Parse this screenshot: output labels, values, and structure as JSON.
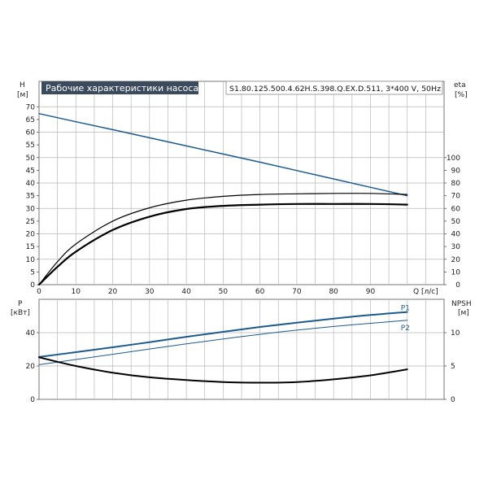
{
  "header": {
    "title": "Рабочие характеристики насоса",
    "model": "S1.80.125.500.4.62H.S.398.Q.EX.D.511, 3*400 V, 50Hz"
  },
  "colors": {
    "blue": "#1c5a8e",
    "black": "#000000",
    "grid": "#b8b8b8",
    "title_bg": "#3b4a5c"
  },
  "axes": {
    "h_label": "H",
    "h_unit": "[м]",
    "eta_label": "eta",
    "eta_unit": "[%]",
    "q_label": "Q [л/с]",
    "p_label": "P",
    "p_unit": "[кВт]",
    "npsh_label": "NPSH",
    "npsh_unit": "[м]"
  },
  "chart_data": [
    {
      "type": "line",
      "title": "Рабочие характеристики насоса",
      "xlabel": "Q [л/с]",
      "ylabel": "H [м]",
      "y2label": "eta [%]",
      "xlim": [
        0,
        110
      ],
      "ylim": [
        0,
        80
      ],
      "y2lim": [
        0,
        160
      ],
      "x_ticks": [
        0,
        10,
        20,
        30,
        40,
        50,
        60,
        70,
        80,
        90
      ],
      "y_ticks": [
        0,
        5,
        10,
        15,
        20,
        25,
        30,
        35,
        40,
        45,
        50,
        55,
        60,
        65,
        70
      ],
      "y2_ticks": [
        0,
        10,
        20,
        30,
        40,
        50,
        60,
        70,
        80,
        90,
        100
      ],
      "grid": true,
      "series": [
        {
          "axis": "H",
          "color": "#1c5a8e",
          "x": [
            0,
            10,
            20,
            30,
            40,
            50,
            60,
            70,
            80,
            90,
            100
          ],
          "y": [
            67.3,
            64.1,
            61.0,
            57.8,
            54.6,
            51.4,
            48.2,
            44.9,
            41.6,
            38.3,
            35.0
          ]
        },
        {
          "axis": "eta",
          "color": "#000000",
          "width": 1.2,
          "x": [
            0,
            5,
            10,
            20,
            30,
            40,
            50,
            60,
            70,
            80,
            90,
            100
          ],
          "y": [
            0,
            18,
            32,
            50,
            60.5,
            66.5,
            69.5,
            71,
            71.5,
            71.8,
            71.8,
            71
          ]
        },
        {
          "axis": "eta",
          "color": "#000000",
          "width": 2.2,
          "x": [
            0,
            5,
            10,
            20,
            30,
            40,
            50,
            60,
            70,
            80,
            90,
            100
          ],
          "y": [
            0,
            14,
            26,
            43,
            53.5,
            59.5,
            62,
            63,
            63.5,
            63.5,
            63.5,
            63
          ]
        }
      ]
    },
    {
      "type": "line",
      "xlabel": "Q [л/с]",
      "ylabel": "P [кВт]",
      "y2label": "NPSH [м]",
      "xlim": [
        0,
        110
      ],
      "ylim": [
        0,
        60
      ],
      "y2lim": [
        0,
        15
      ],
      "x_ticks": [
        0,
        10,
        20,
        30,
        40,
        50,
        60,
        70,
        80,
        90
      ],
      "y_ticks": [
        0,
        20,
        40
      ],
      "y2_ticks": [
        0,
        5,
        10
      ],
      "grid": true,
      "series": [
        {
          "name": "P1",
          "axis": "P",
          "color": "#1c5a8e",
          "width": 2,
          "x": [
            0,
            10,
            20,
            30,
            40,
            50,
            60,
            70,
            80,
            90,
            100
          ],
          "y": [
            25.4,
            28.3,
            31.2,
            34.3,
            37.5,
            40.5,
            43.4,
            46.0,
            48.4,
            50.6,
            52.4
          ]
        },
        {
          "name": "P2",
          "axis": "P",
          "color": "#1c5a8e",
          "width": 1,
          "x": [
            0,
            10,
            20,
            30,
            40,
            50,
            60,
            70,
            80,
            90,
            100
          ],
          "y": [
            20.8,
            23.9,
            27.0,
            30.2,
            33.3,
            36.2,
            39.0,
            41.5,
            43.7,
            45.6,
            47.4
          ]
        },
        {
          "name": "NPSH",
          "axis": "NPSH",
          "color": "#000000",
          "width": 2,
          "x": [
            0,
            10,
            20,
            30,
            40,
            50,
            60,
            70,
            80,
            90,
            100
          ],
          "y": [
            6.3,
            5.0,
            4.0,
            3.3,
            2.9,
            2.6,
            2.5,
            2.6,
            3.0,
            3.6,
            4.5
          ]
        }
      ]
    }
  ]
}
